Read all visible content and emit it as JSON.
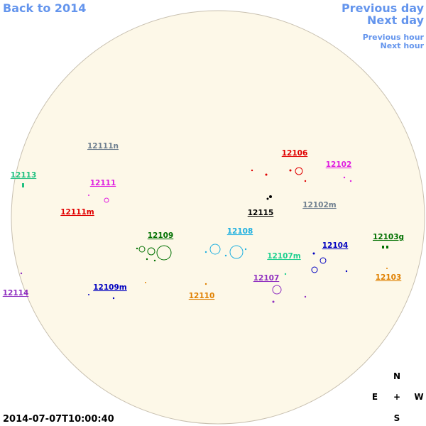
{
  "nav": {
    "back": "Back to 2014",
    "previous_day": "Previous day",
    "next_day": "Next day",
    "previous_hour": "Previous hour",
    "next_hour": "Next hour"
  },
  "regions": [
    {
      "label": "12111n",
      "color": "#708090"
    },
    {
      "label": "12106",
      "color": "#e00000"
    },
    {
      "label": "12102",
      "color": "#e020e0"
    },
    {
      "label": "12113",
      "color": "#20c080"
    },
    {
      "label": "12111",
      "color": "#e020e0"
    },
    {
      "label": "12111m",
      "color": "#e00000"
    },
    {
      "label": "12115",
      "color": "#000000"
    },
    {
      "label": "12102m",
      "color": "#708090"
    },
    {
      "label": "12109",
      "color": "#007000"
    },
    {
      "label": "12108",
      "color": "#20b0e0"
    },
    {
      "label": "12104",
      "color": "#0000c0"
    },
    {
      "label": "12103g",
      "color": "#007000"
    },
    {
      "label": "12107m",
      "color": "#20d090"
    },
    {
      "label": "12107",
      "color": "#9030c0"
    },
    {
      "label": "12103",
      "color": "#e08000"
    },
    {
      "label": "12109m",
      "color": "#0000c0"
    },
    {
      "label": "12110",
      "color": "#e08000"
    },
    {
      "label": "12114",
      "color": "#9030c0"
    }
  ],
  "compass": {
    "north": "N",
    "east": "E",
    "center": "+",
    "west": "W",
    "south": "S"
  },
  "timestamp": "2014-07-07T10:00:40"
}
